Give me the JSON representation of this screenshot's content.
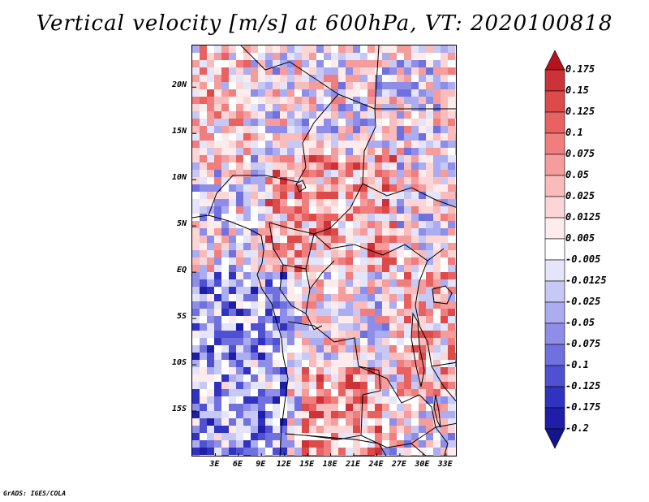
{
  "title": "Vertical velocity [m/s] at 600hPa, VT: 2020100818",
  "footer": "GrADS: IGES/COLA",
  "map": {
    "lat_range": [
      -20,
      24.5
    ],
    "lon_range": [
      0,
      34.5
    ],
    "lat_ticks": [
      {
        "value": 20,
        "label": "20N"
      },
      {
        "value": 15,
        "label": "15N"
      },
      {
        "value": 10,
        "label": "10N"
      },
      {
        "value": 5,
        "label": "5N"
      },
      {
        "value": 0,
        "label": "EQ"
      },
      {
        "value": -5,
        "label": "5S"
      },
      {
        "value": -10,
        "label": "10S"
      },
      {
        "value": -15,
        "label": "15S"
      }
    ],
    "lon_ticks": [
      {
        "value": 3,
        "label": "3E"
      },
      {
        "value": 6,
        "label": "6E"
      },
      {
        "value": 9,
        "label": "9E"
      },
      {
        "value": 12,
        "label": "12E"
      },
      {
        "value": 15,
        "label": "15E"
      },
      {
        "value": 18,
        "label": "18E"
      },
      {
        "value": 21,
        "label": "21E"
      },
      {
        "value": 24,
        "label": "24E"
      },
      {
        "value": 27,
        "label": "27E"
      },
      {
        "value": 30,
        "label": "30E"
      },
      {
        "value": 33,
        "label": "33E"
      }
    ]
  },
  "colorbar": {
    "labels": [
      "0.175",
      "0.15",
      "0.125",
      "0.1",
      "0.075",
      "0.05",
      "0.025",
      "0.0125",
      "0.005",
      "-0.005",
      "-0.0125",
      "-0.025",
      "-0.05",
      "-0.075",
      "-0.1",
      "-0.125",
      "-0.175",
      "-0.2"
    ],
    "colors": [
      "#b4141e",
      "#cd3238",
      "#dc4a4a",
      "#e86262",
      "#f07e7e",
      "#f59c9c",
      "#f9bcbc",
      "#fcd6d6",
      "#feecec",
      "#ffffff",
      "#e4e4fa",
      "#c8c8f5",
      "#acacf0",
      "#8e8ee8",
      "#7070de",
      "#5050d2",
      "#3232c0",
      "#1e1ea8",
      "#14148c"
    ]
  }
}
